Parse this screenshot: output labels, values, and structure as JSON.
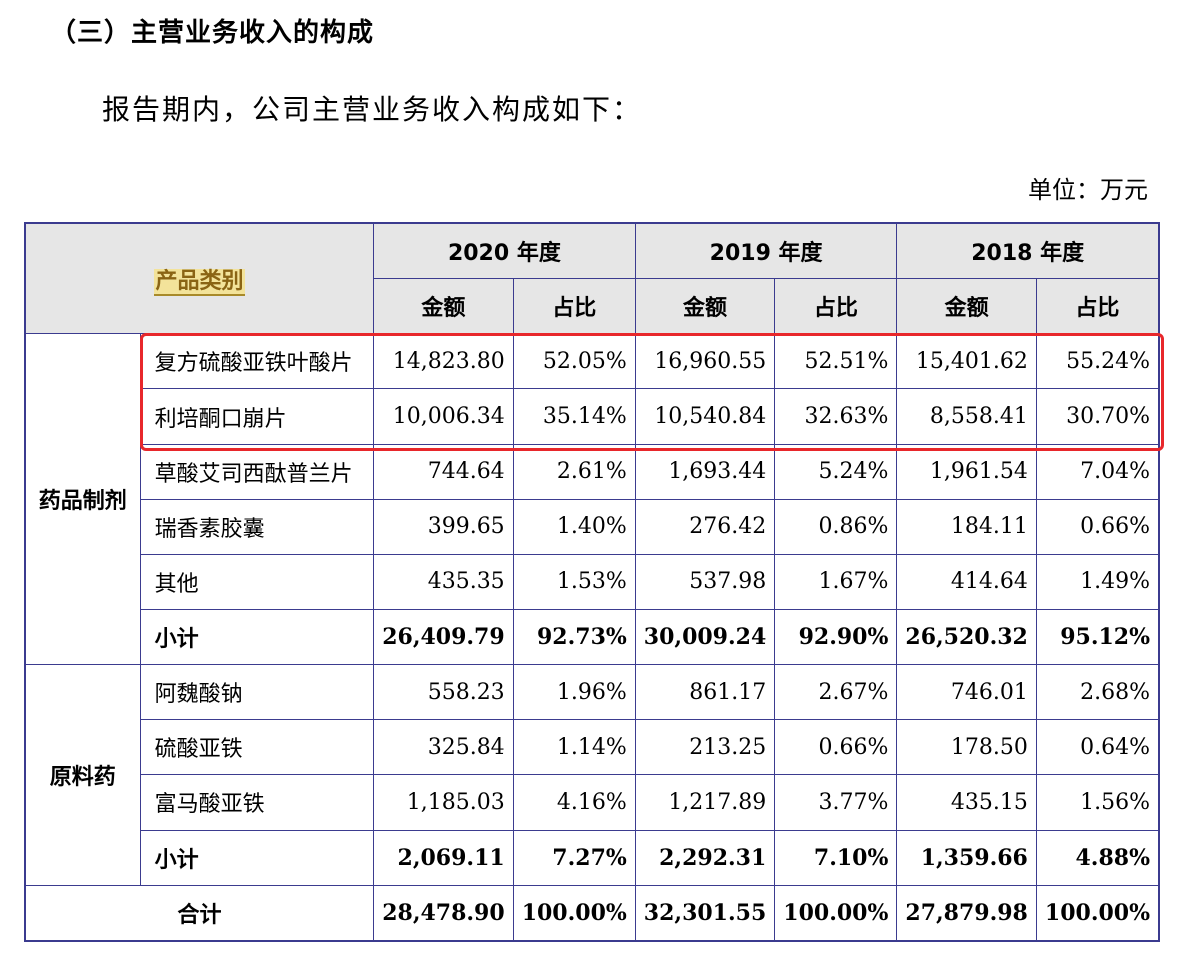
{
  "heading": "（三）主营业务收入的构成",
  "intro": "报告期内，公司主营业务收入构成如下：",
  "unit": "单位：万元",
  "table": {
    "category_header": "产品类别",
    "years": [
      "2020 年度",
      "2019 年度",
      "2018 年度"
    ],
    "amount_label": "金额",
    "ratio_label": "占比",
    "groups": [
      {
        "name": "药品制剂",
        "rows": [
          {
            "name": "复方硫酸亚铁叶酸片",
            "values": [
              "14,823.80",
              "52.05%",
              "16,960.55",
              "52.51%",
              "15,401.62",
              "55.24%"
            ]
          },
          {
            "name": "利培酮口崩片",
            "values": [
              "10,006.34",
              "35.14%",
              "10,540.84",
              "32.63%",
              "8,558.41",
              "30.70%"
            ]
          },
          {
            "name": "草酸艾司西酞普兰片",
            "values": [
              "744.64",
              "2.61%",
              "1,693.44",
              "5.24%",
              "1,961.54",
              "7.04%"
            ]
          },
          {
            "name": "瑞香素胶囊",
            "values": [
              "399.65",
              "1.40%",
              "276.42",
              "0.86%",
              "184.11",
              "0.66%"
            ]
          },
          {
            "name": "其他",
            "values": [
              "435.35",
              "1.53%",
              "537.98",
              "1.67%",
              "414.64",
              "1.49%"
            ]
          }
        ],
        "subtotal": {
          "name": "小计",
          "values": [
            "26,409.79",
            "92.73%",
            "30,009.24",
            "92.90%",
            "26,520.32",
            "95.12%"
          ]
        }
      },
      {
        "name": "原料药",
        "rows": [
          {
            "name": "阿魏酸钠",
            "values": [
              "558.23",
              "1.96%",
              "861.17",
              "2.67%",
              "746.01",
              "2.68%"
            ]
          },
          {
            "name": "硫酸亚铁",
            "values": [
              "325.84",
              "1.14%",
              "213.25",
              "0.66%",
              "178.50",
              "0.64%"
            ]
          },
          {
            "name": "富马酸亚铁",
            "values": [
              "1,185.03",
              "4.16%",
              "1,217.89",
              "3.77%",
              "435.15",
              "1.56%"
            ]
          }
        ],
        "subtotal": {
          "name": "小计",
          "values": [
            "2,069.11",
            "7.27%",
            "2,292.31",
            "7.10%",
            "1,359.66",
            "4.88%"
          ]
        }
      }
    ],
    "total": {
      "name": "合计",
      "values": [
        "28,478.90",
        "100.00%",
        "32,301.55",
        "100.00%",
        "27,879.98",
        "100.00%"
      ]
    }
  },
  "colors": {
    "border": "#3b3b8f",
    "highlight_box": "#e8272b",
    "header_bg": "#e6e6e6"
  }
}
